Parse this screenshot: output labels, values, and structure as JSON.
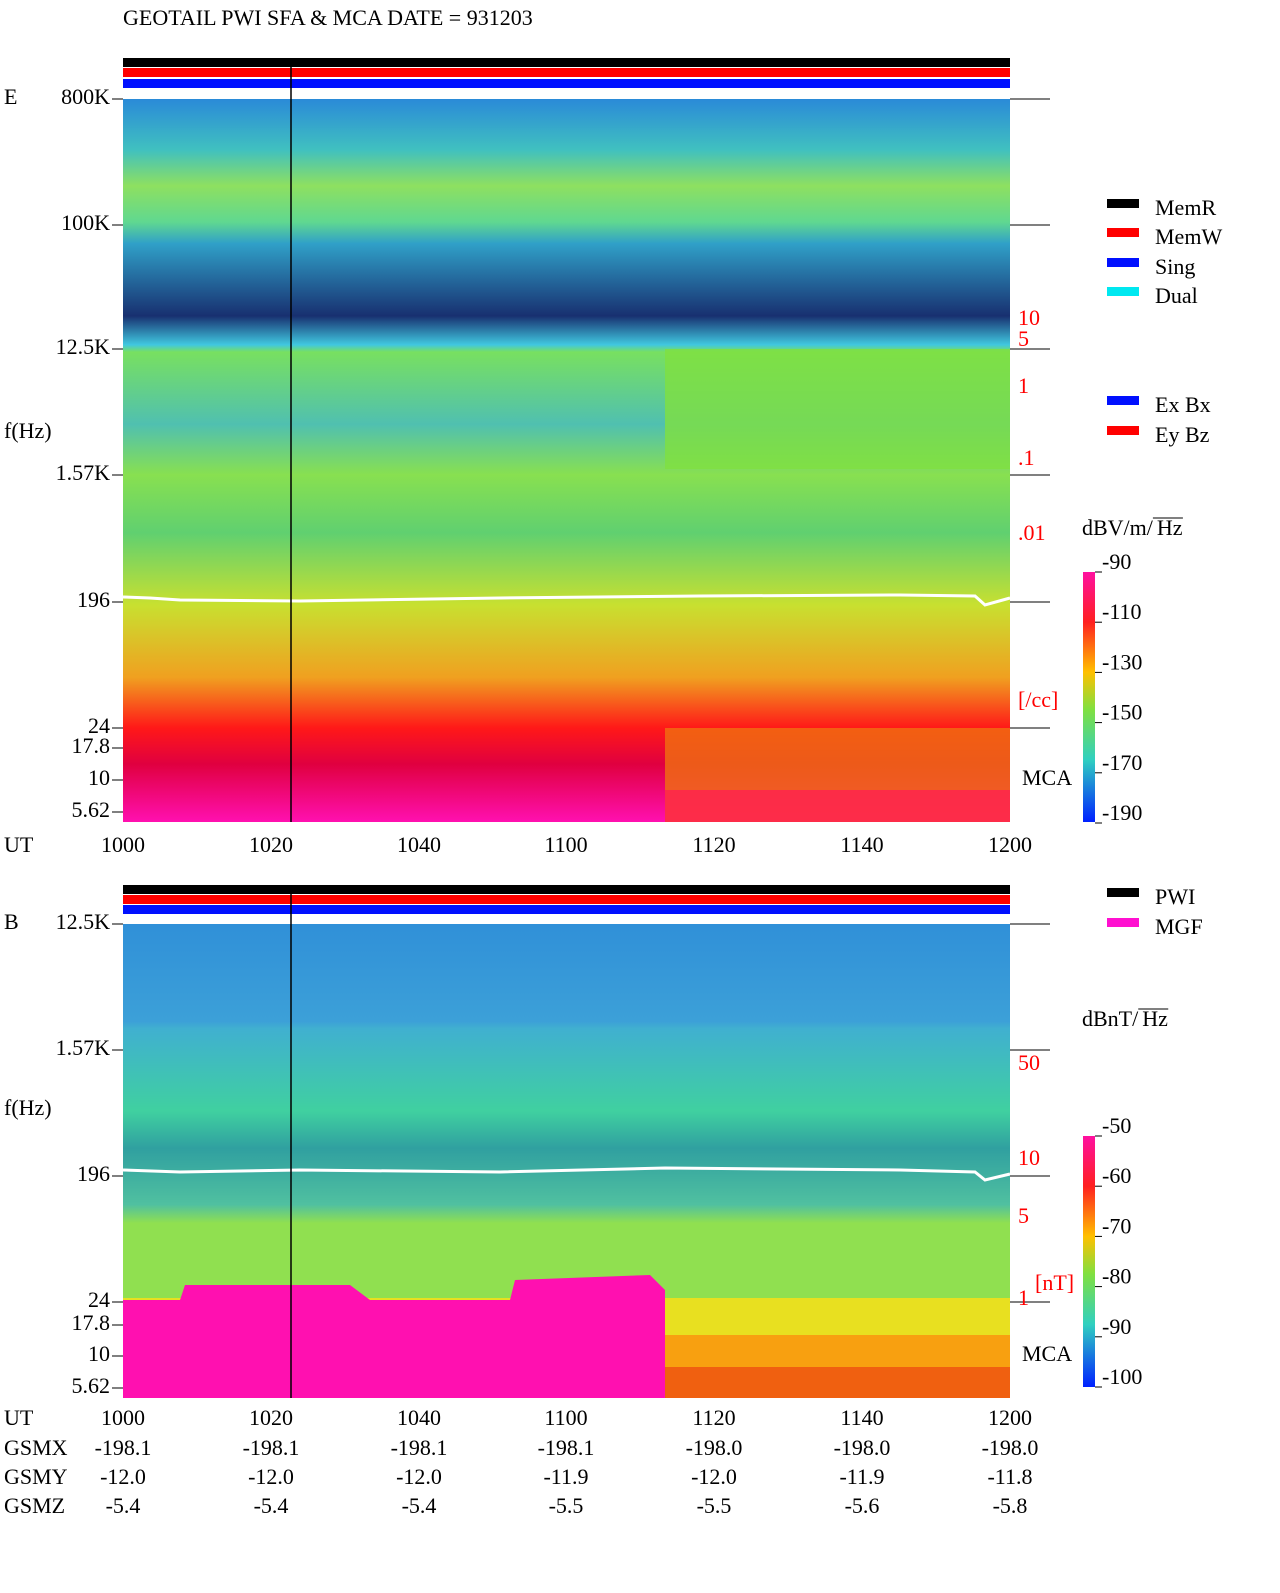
{
  "header": {
    "title": "GEOTAIL  PWI SFA & MCA   DATE = 931203"
  },
  "panel_e": {
    "label": "E",
    "y_labels": [
      "800K",
      "100K",
      "12.5K",
      "f(Hz)",
      "1.57K",
      "196",
      "24",
      "17.8",
      "10",
      "5.62"
    ],
    "x_label": "UT",
    "x_ticks": [
      "1000",
      "1020",
      "1040",
      "1100",
      "1120",
      "1140",
      "1200"
    ],
    "right_labels": [
      "10",
      "5",
      "1",
      ".1",
      ".01",
      "[/cc]"
    ],
    "mca": "MCA",
    "legend": [
      "MemR",
      "MemW",
      "Sing",
      "Dual"
    ],
    "legend2": [
      "Ex Bx",
      "Ey Bz"
    ],
    "colorbar_unit": "dBV/m/",
    "colorbar_unit_root": "Hz",
    "colorbar_ticks": [
      "-90",
      "-110",
      "-130",
      "-150",
      "-170",
      "-190"
    ]
  },
  "panel_b": {
    "label": "B",
    "y_labels": [
      "12.5K",
      "1.57K",
      "f(Hz)",
      "196",
      "24",
      "17.8",
      "10",
      "5.62"
    ],
    "x_label": "UT",
    "x_ticks": [
      "1000",
      "1020",
      "1040",
      "1100",
      "1120",
      "1140",
      "1200"
    ],
    "right_labels": [
      "50",
      "10",
      "5",
      "1",
      "[nT]"
    ],
    "mca": "MCA",
    "legend": [
      "PWI",
      "MGF"
    ],
    "colorbar_unit": "dBnT/",
    "colorbar_unit_root": "Hz",
    "colorbar_ticks": [
      "-50",
      "-60",
      "-70",
      "-80",
      "-90",
      "-100"
    ]
  },
  "orbit": {
    "rows": [
      {
        "label": "GSMX",
        "values": [
          "-198.1",
          "-198.1",
          "-198.1",
          "-198.1",
          "-198.0",
          "-198.0",
          "-198.0"
        ]
      },
      {
        "label": "GSMY",
        "values": [
          "-12.0",
          "-12.0",
          "-12.0",
          "-11.9",
          "-12.0",
          "-11.9",
          "-11.8"
        ]
      },
      {
        "label": "GSMZ",
        "values": [
          "-5.4",
          "-5.4",
          "-5.4",
          "-5.5",
          "-5.5",
          "-5.6",
          "-5.8"
        ]
      }
    ]
  }
}
